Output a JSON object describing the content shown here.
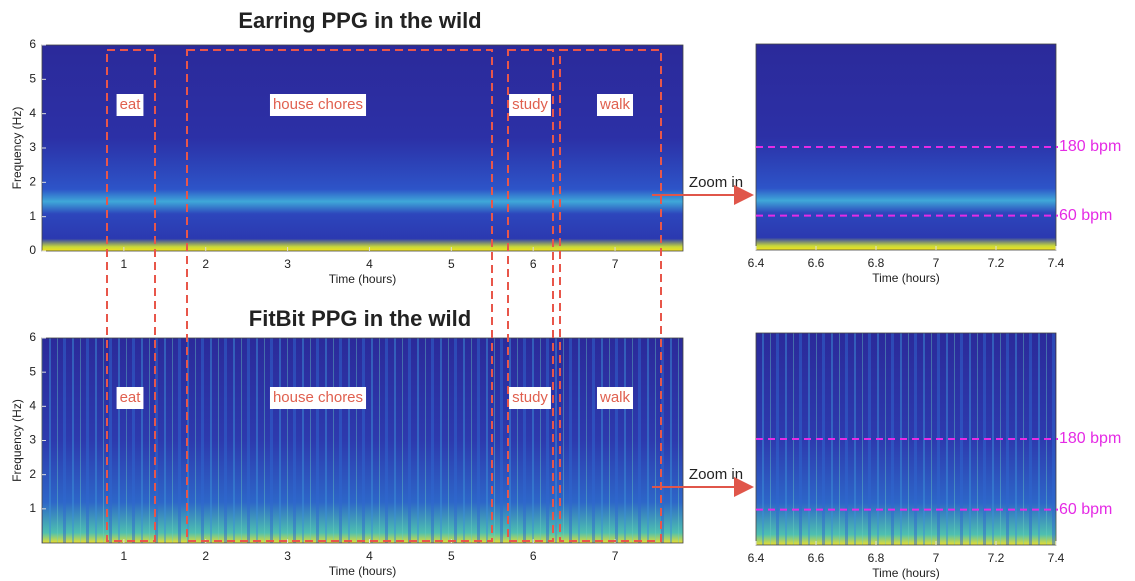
{
  "chart_data": [
    {
      "type": "heatmap",
      "title": "Earring PPG in the wild",
      "xlabel": "Time (hours)",
      "ylabel": "Frequency (Hz)",
      "xlim": [
        0,
        7.83
      ],
      "xticks": [
        1,
        2,
        3,
        4,
        5,
        6,
        7
      ],
      "ylim": [
        0,
        6
      ],
      "yticks": [
        0,
        1,
        2,
        3,
        4,
        5,
        6
      ],
      "annotations": [
        "eat",
        "house chores",
        "study",
        "walk"
      ]
    },
    {
      "type": "heatmap",
      "xlabel": "Time (hours)",
      "xlim": [
        6.4,
        7.4
      ],
      "xticks": [
        6.4,
        6.6,
        6.8,
        7,
        7.2,
        7.4
      ],
      "ylim": [
        0,
        6
      ],
      "hlines": [
        {
          "value": 3,
          "label": "180 bpm"
        },
        {
          "value": 1,
          "label": "60 bpm"
        }
      ],
      "annotations": [
        "Zoom in"
      ]
    },
    {
      "type": "heatmap",
      "title": "FitBit PPG in the wild",
      "xlabel": "Time (hours)",
      "ylabel": "Frequency (Hz)",
      "xlim": [
        0,
        7.83
      ],
      "xticks": [
        1,
        2,
        3,
        4,
        5,
        6,
        7
      ],
      "ylim": [
        0,
        6
      ],
      "yticks": [
        1,
        2,
        3,
        4,
        5,
        6
      ],
      "annotations": [
        "eat",
        "house chores",
        "study",
        "walk"
      ]
    },
    {
      "type": "heatmap",
      "xlabel": "Time (hours)",
      "xlim": [
        6.4,
        7.4
      ],
      "xticks": [
        6.4,
        6.6,
        6.8,
        7,
        7.2,
        7.4
      ],
      "ylim": [
        0,
        6
      ],
      "hlines": [
        {
          "value": 3,
          "label": "180 bpm"
        },
        {
          "value": 1,
          "label": "60 bpm"
        }
      ],
      "annotations": [
        "Zoom in"
      ]
    }
  ]
}
